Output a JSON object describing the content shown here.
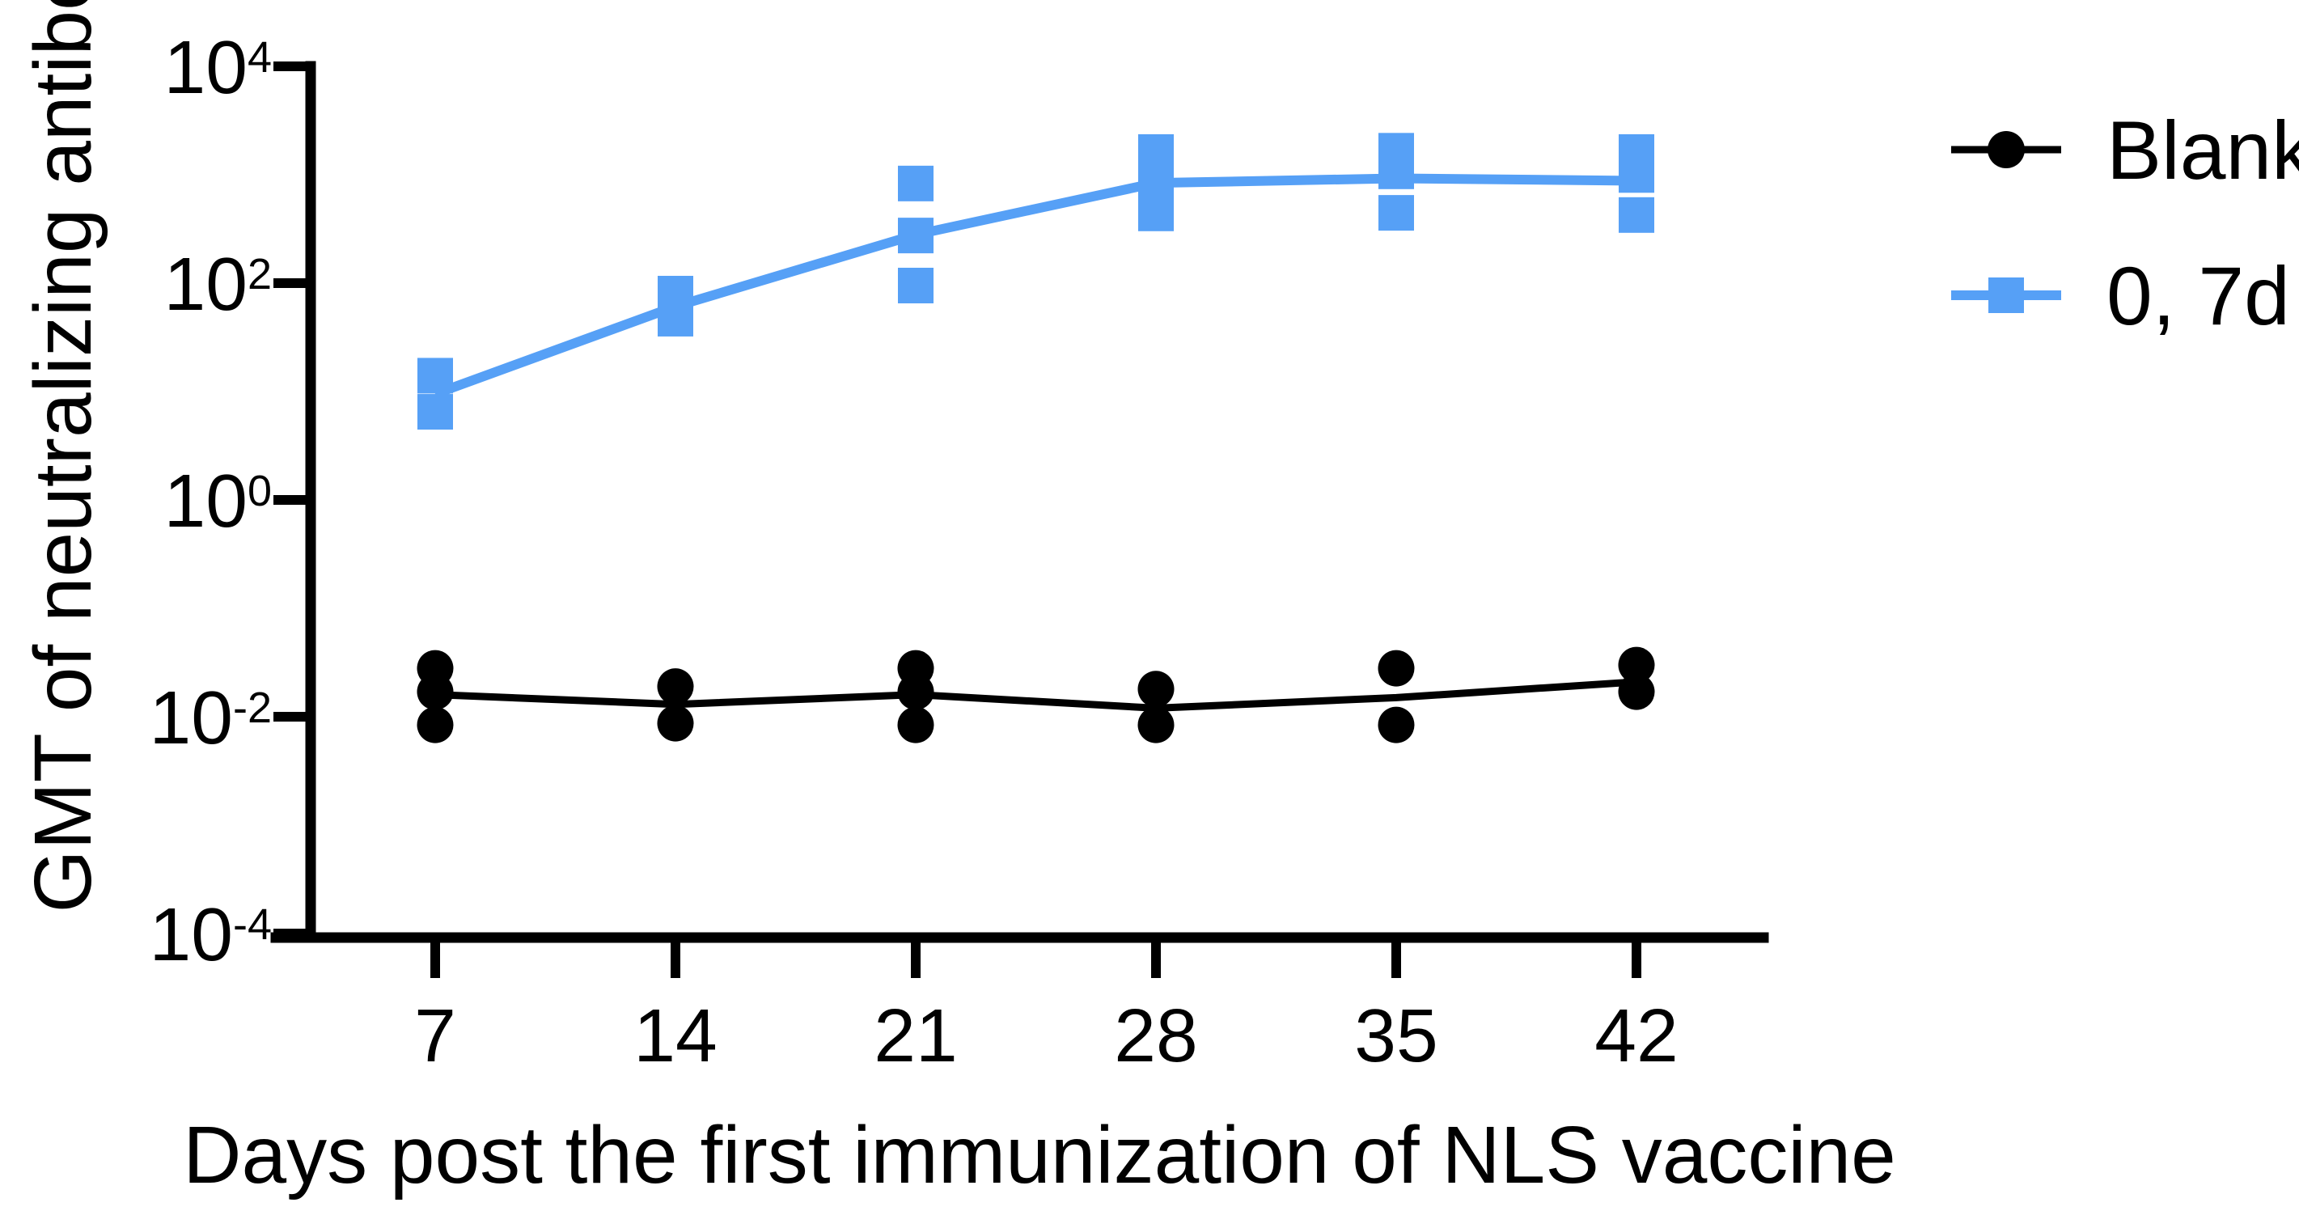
{
  "chart_data": {
    "type": "scatter",
    "subtype": "log-scatter-with-line",
    "title": "",
    "xlabel": "Days post the first immunization of NLS vaccine",
    "ylabel": "GMT of neutralizing antibody",
    "x_ticks": [
      7,
      14,
      21,
      28,
      35,
      42
    ],
    "y_axis": {
      "scale": "log10",
      "tick_exponents": [
        4,
        2,
        0,
        -2,
        -4
      ],
      "tick_labels": [
        "10^4",
        "10^2",
        "10^0",
        "10^-2",
        "10^-4"
      ],
      "range_exponents": [
        -4,
        4
      ]
    },
    "grid": false,
    "legend_position": "top-right",
    "axis_color": "#000000",
    "series": [
      {
        "name": "Blank",
        "marker": "circle",
        "color": "#000000",
        "line_width": 9,
        "x": [
          7,
          14,
          21,
          28,
          35,
          42
        ],
        "line_values": [
          0.016,
          0.013,
          0.016,
          0.012,
          0.015,
          0.021
        ],
        "replicate_points": [
          [
            0.0084,
            0.017,
            0.028
          ],
          [
            0.0087,
            0.019
          ],
          [
            0.0084,
            0.017,
            0.028
          ],
          [
            0.0084,
            0.018
          ],
          [
            0.0084,
            0.028
          ],
          [
            0.017,
            0.03
          ]
        ]
      },
      {
        "name": "0, 7d",
        "marker": "square",
        "color": "#56A0F6",
        "line_width": 12,
        "x": [
          7,
          14,
          21,
          28,
          35,
          42
        ],
        "line_values": [
          9.5,
          61,
          280,
          840,
          925,
          880
        ],
        "replicate_points": [
          [
            6.5,
            14
          ],
          [
            47,
            80
          ],
          [
            95,
            275,
            830
          ],
          [
            440,
            845,
            1620
          ],
          [
            445,
            1075,
            1665
          ],
          [
            425,
            995,
            1620
          ]
        ]
      }
    ]
  }
}
